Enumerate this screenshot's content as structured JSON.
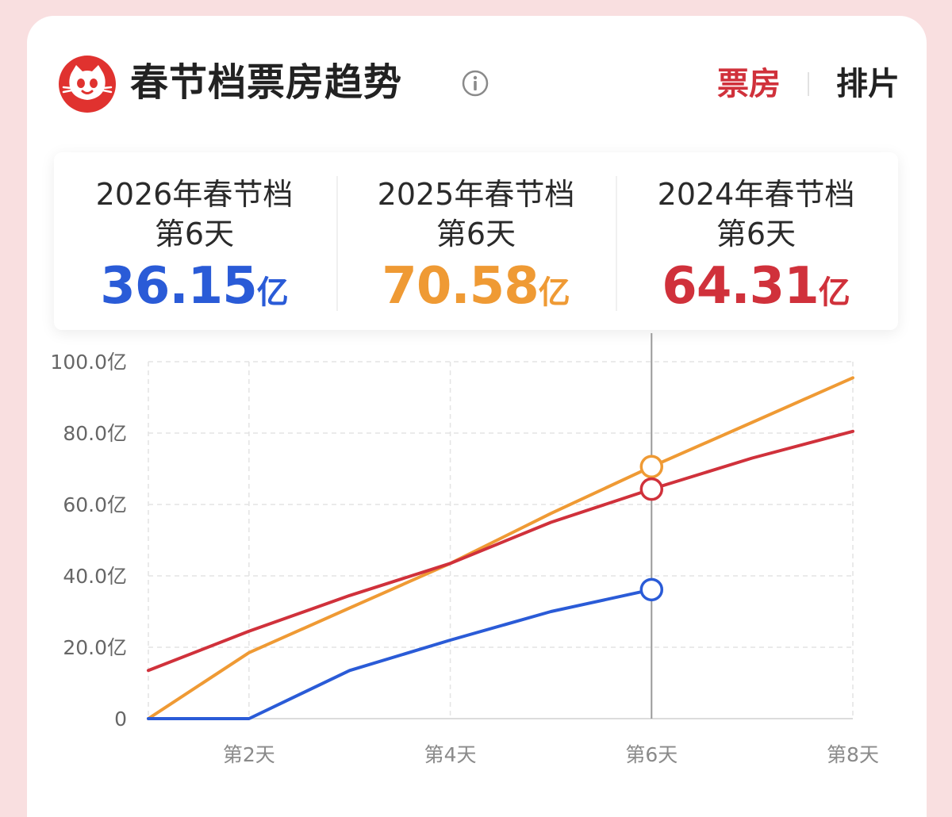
{
  "header": {
    "title": "春节档票房趋势",
    "tabs": [
      {
        "label": "票房",
        "active": true
      },
      {
        "label": "排片",
        "active": false
      }
    ]
  },
  "stats": [
    {
      "year": "2026年春节档",
      "day": "第6天",
      "value": "36.15",
      "unit": "亿",
      "color": "#2a5bd7"
    },
    {
      "year": "2025年春节档",
      "day": "第6天",
      "value": "70.58",
      "unit": "亿",
      "color": "#ef9a34"
    },
    {
      "year": "2024年春节档",
      "day": "第6天",
      "value": "64.31",
      "unit": "亿",
      "color": "#d0313b"
    }
  ],
  "chart_data": {
    "type": "line",
    "x": [
      1,
      2,
      3,
      4,
      5,
      6,
      7,
      8
    ],
    "xticks": [
      2,
      4,
      6,
      8
    ],
    "xtick_labels": [
      "第2天",
      "第4天",
      "第6天",
      "第8天"
    ],
    "xlim": [
      1,
      8
    ],
    "ylim": [
      0,
      100
    ],
    "yticks": [
      0,
      20,
      40,
      60,
      80,
      100
    ],
    "ytick_labels": [
      "0",
      "20.0亿",
      "40.0亿",
      "60.0亿",
      "80.0亿",
      "100.0亿"
    ],
    "grid": true,
    "highlight_x": 6,
    "series": [
      {
        "name": "2025年春节档",
        "color": "#ef9a34",
        "x": [
          1,
          2,
          3,
          4,
          5,
          6,
          7,
          8
        ],
        "values": [
          0,
          18.5,
          31,
          43.5,
          57.5,
          70.6,
          83,
          95.5
        ]
      },
      {
        "name": "2024年春节档",
        "color": "#d0313b",
        "x": [
          1,
          2,
          3,
          4,
          5,
          6,
          7,
          8
        ],
        "values": [
          13.5,
          24.5,
          34.5,
          43.5,
          55,
          64.3,
          73,
          80.5
        ]
      },
      {
        "name": "2026年春节档",
        "color": "#2a5bd7",
        "x": [
          1,
          2,
          3,
          4,
          5,
          6
        ],
        "values": [
          0,
          0,
          13.5,
          22,
          30,
          36.15
        ]
      }
    ]
  }
}
